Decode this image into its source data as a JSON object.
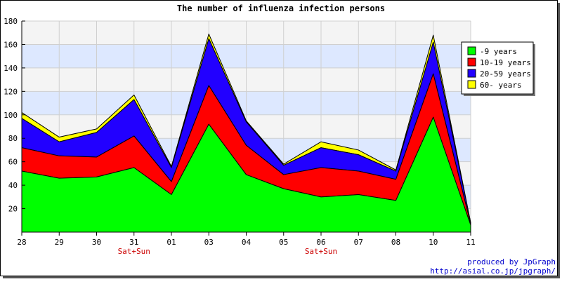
{
  "chart_data": {
    "type": "area",
    "stacked": true,
    "title": "The number of influenza infection persons",
    "categories": [
      "28",
      "29",
      "30",
      "31",
      "01",
      "03",
      "04",
      "05",
      "06",
      "07",
      "08",
      "10",
      "11"
    ],
    "weekend_label": "Sat+Sun",
    "weekend_categories": [
      "31",
      "06"
    ],
    "ylim": [
      0,
      180
    ],
    "yticks": [
      20,
      40,
      60,
      80,
      100,
      120,
      140,
      160,
      180
    ],
    "series": [
      {
        "name": "-9 years",
        "color": "#00ff00",
        "values": [
          52,
          46,
          47,
          55,
          32,
          92,
          49,
          37,
          30,
          32,
          27,
          98,
          6
        ]
      },
      {
        "name": "10-19 years",
        "color": "#ff0000",
        "values": [
          20,
          19,
          17,
          27,
          11,
          33,
          25,
          12,
          25,
          20,
          18,
          37,
          1
        ]
      },
      {
        "name": "20-59 years",
        "color": "#2200ff",
        "values": [
          25,
          12,
          21,
          31,
          12,
          40,
          20,
          8,
          17,
          14,
          7,
          27,
          1
        ]
      },
      {
        "name": "60- years",
        "color": "#ffff00",
        "values": [
          5,
          4,
          3,
          4,
          1,
          4,
          1,
          1,
          5,
          4,
          1,
          6,
          0
        ]
      }
    ],
    "grid": true,
    "legend_position": "right"
  },
  "credits": {
    "line1": "produced by JpGraph",
    "line2": "http://asial.co.jp/jpgraph/"
  }
}
